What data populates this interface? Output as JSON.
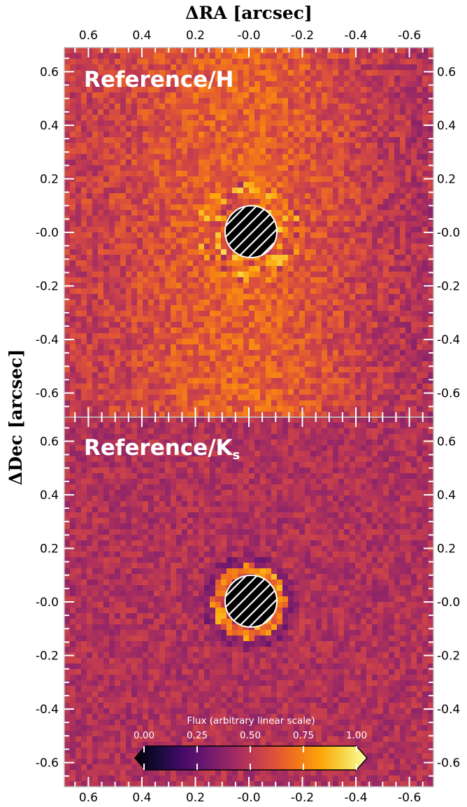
{
  "chart_data": {
    "type": "heatmap",
    "x_axis_title": "ΔRA [arcsec]",
    "y_axis_title": "ΔDec [arcsec]",
    "x_tick_labels": [
      "0.6",
      "0.4",
      "0.2",
      "-0.0",
      "-0.2",
      "-0.4",
      "-0.6"
    ],
    "x_tick_values": [
      0.6,
      0.4,
      0.2,
      0.0,
      -0.2,
      -0.4,
      -0.6
    ],
    "y_tick_labels": [
      "0.6",
      "0.4",
      "0.2",
      "-0.0",
      "-0.2",
      "-0.4",
      "-0.6"
    ],
    "y_tick_values": [
      0.6,
      0.4,
      0.2,
      0.0,
      -0.2,
      -0.4,
      -0.6
    ],
    "xlim": [
      0.69,
      -0.69
    ],
    "ylim": [
      -0.69,
      0.69
    ],
    "panels": [
      {
        "label_main": "Reference/H",
        "label_sub": ""
      },
      {
        "label_main": "Reference/K",
        "label_sub": "s"
      }
    ],
    "mask": {
      "x": 0.0,
      "y": 0.0,
      "radius": 0.1
    },
    "colorbar": {
      "title": "Flux (arbitrary linear scale)",
      "tick_labels": [
        "0.00",
        "0.25",
        "0.50",
        "0.75",
        "1.00"
      ],
      "tick_values": [
        0.0,
        0.25,
        0.5,
        0.75,
        1.0
      ],
      "colormap": "inferno"
    }
  }
}
